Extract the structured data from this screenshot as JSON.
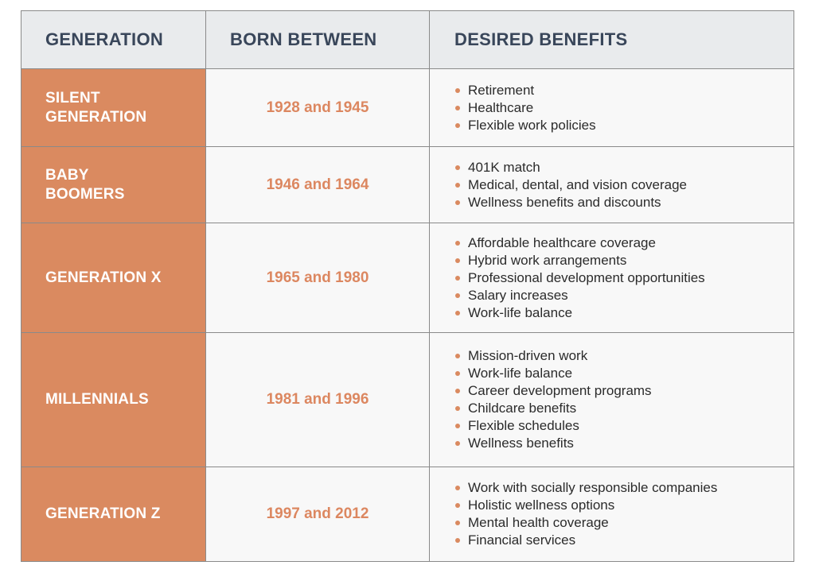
{
  "headers": {
    "generation": "GENERATION",
    "born_between": "BORN BETWEEN",
    "desired_benefits": "DESIRED BENEFITS"
  },
  "colors": {
    "accent": "#da8a60",
    "header_bg": "#e9ebed",
    "header_text": "#39465a",
    "cell_bg": "#f8f8f8"
  },
  "rows": [
    {
      "generation_line1": "SILENT",
      "generation_line2": "GENERATION",
      "born": "1928 and 1945",
      "benefits": [
        "Retirement",
        "Healthcare",
        "Flexible work policies"
      ]
    },
    {
      "generation_line1": "BABY",
      "generation_line2": "BOOMERS",
      "born": "1946 and 1964",
      "benefits": [
        "401K match",
        "Medical, dental, and vision coverage",
        "Wellness benefits and discounts"
      ]
    },
    {
      "generation_line1": "GENERATION X",
      "generation_line2": "",
      "born": "1965 and 1980",
      "benefits": [
        "Affordable healthcare coverage",
        "Hybrid work arrangements",
        "Professional development opportunities",
        "Salary increases",
        "Work-life balance"
      ]
    },
    {
      "generation_line1": "MILLENNIALS",
      "generation_line2": "",
      "born": "1981 and 1996",
      "benefits": [
        "Mission-driven work",
        "Work-life balance",
        "Career development programs",
        "Childcare benefits",
        "Flexible schedules",
        "Wellness benefits"
      ]
    },
    {
      "generation_line1": "GENERATION Z",
      "generation_line2": "",
      "born": "1997 and 2012",
      "benefits": [
        "Work with socially responsible companies",
        "Holistic wellness options",
        "Mental health coverage",
        "Financial services"
      ]
    }
  ]
}
